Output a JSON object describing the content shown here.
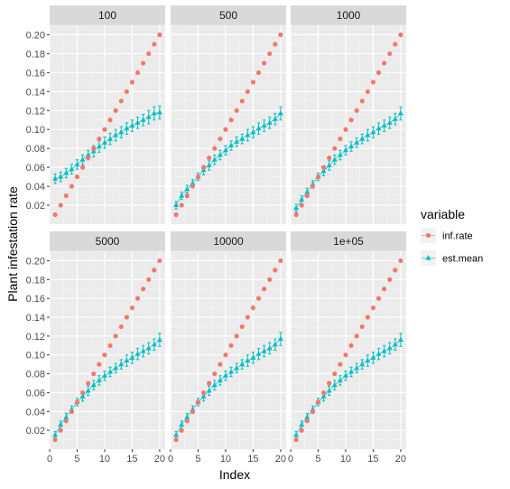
{
  "chart_data": {
    "type": "scatter",
    "facet_labels": [
      "100",
      "500",
      "1000",
      "5000",
      "10000",
      "1e+05"
    ],
    "xlabel": "Index",
    "ylabel": "Plant infestation rate",
    "x_ticks": [
      "0",
      "5",
      "10",
      "15",
      "20"
    ],
    "y_ticks": [
      "0.02",
      "0.04",
      "0.06",
      "0.08",
      "0.10",
      "0.12",
      "0.14",
      "0.16",
      "0.18",
      "0.20"
    ],
    "xlim": [
      0,
      21
    ],
    "ylim": [
      0,
      0.21
    ],
    "x": [
      1,
      2,
      3,
      4,
      5,
      6,
      7,
      8,
      9,
      10,
      11,
      12,
      13,
      14,
      15,
      16,
      17,
      18,
      19,
      20
    ],
    "grid": true,
    "legend": {
      "title": "variable",
      "position": "right",
      "entries": [
        {
          "name": "inf.rate",
          "color": "#F8766D",
          "shape": "circle"
        },
        {
          "name": "est.mean",
          "color": "#00BFC4",
          "shape": "triangle"
        }
      ]
    },
    "facets": [
      {
        "label": "100",
        "inf_rate": [
          0.01,
          0.02,
          0.03,
          0.04,
          0.05,
          0.06,
          0.07,
          0.08,
          0.09,
          0.1,
          0.11,
          0.12,
          0.13,
          0.14,
          0.15,
          0.16,
          0.17,
          0.18,
          0.19,
          0.2
        ],
        "est_mean": [
          0.048,
          0.05,
          0.054,
          0.058,
          0.063,
          0.068,
          0.073,
          0.077,
          0.082,
          0.086,
          0.09,
          0.094,
          0.097,
          0.101,
          0.104,
          0.107,
          0.11,
          0.113,
          0.117,
          0.118
        ],
        "est_err": [
          0.005,
          0.005,
          0.005,
          0.005,
          0.005,
          0.005,
          0.005,
          0.006,
          0.006,
          0.006,
          0.006,
          0.006,
          0.006,
          0.006,
          0.006,
          0.006,
          0.006,
          0.007,
          0.007,
          0.007
        ]
      },
      {
        "label": "500",
        "inf_rate": [
          0.01,
          0.02,
          0.03,
          0.04,
          0.05,
          0.06,
          0.07,
          0.08,
          0.09,
          0.1,
          0.11,
          0.12,
          0.13,
          0.14,
          0.15,
          0.16,
          0.17,
          0.18,
          0.19,
          0.2
        ],
        "est_mean": [
          0.02,
          0.03,
          0.037,
          0.043,
          0.05,
          0.057,
          0.062,
          0.068,
          0.073,
          0.078,
          0.083,
          0.087,
          0.09,
          0.094,
          0.097,
          0.101,
          0.104,
          0.107,
          0.111,
          0.117
        ],
        "est_err": [
          0.004,
          0.004,
          0.004,
          0.004,
          0.004,
          0.005,
          0.005,
          0.005,
          0.005,
          0.005,
          0.005,
          0.005,
          0.005,
          0.006,
          0.006,
          0.006,
          0.006,
          0.006,
          0.006,
          0.007
        ]
      },
      {
        "label": "1000",
        "inf_rate": [
          0.01,
          0.02,
          0.03,
          0.04,
          0.05,
          0.06,
          0.07,
          0.08,
          0.09,
          0.1,
          0.11,
          0.12,
          0.13,
          0.14,
          0.15,
          0.16,
          0.17,
          0.18,
          0.19,
          0.2
        ],
        "est_mean": [
          0.017,
          0.026,
          0.034,
          0.042,
          0.05,
          0.056,
          0.062,
          0.068,
          0.073,
          0.078,
          0.082,
          0.086,
          0.09,
          0.094,
          0.097,
          0.101,
          0.104,
          0.107,
          0.111,
          0.117
        ],
        "est_err": [
          0.004,
          0.004,
          0.004,
          0.004,
          0.004,
          0.005,
          0.005,
          0.005,
          0.005,
          0.005,
          0.005,
          0.005,
          0.005,
          0.006,
          0.006,
          0.006,
          0.006,
          0.006,
          0.006,
          0.007
        ]
      },
      {
        "label": "5000",
        "inf_rate": [
          0.01,
          0.02,
          0.03,
          0.04,
          0.05,
          0.06,
          0.07,
          0.08,
          0.09,
          0.1,
          0.11,
          0.12,
          0.13,
          0.14,
          0.15,
          0.16,
          0.17,
          0.18,
          0.19,
          0.2
        ],
        "est_mean": [
          0.015,
          0.026,
          0.034,
          0.042,
          0.05,
          0.056,
          0.062,
          0.068,
          0.073,
          0.078,
          0.082,
          0.086,
          0.09,
          0.094,
          0.097,
          0.101,
          0.104,
          0.107,
          0.111,
          0.116
        ],
        "est_err": [
          0.004,
          0.004,
          0.004,
          0.004,
          0.004,
          0.005,
          0.005,
          0.005,
          0.005,
          0.005,
          0.005,
          0.005,
          0.005,
          0.006,
          0.006,
          0.006,
          0.006,
          0.006,
          0.006,
          0.007
        ]
      },
      {
        "label": "10000",
        "inf_rate": [
          0.01,
          0.02,
          0.03,
          0.04,
          0.05,
          0.06,
          0.07,
          0.08,
          0.09,
          0.1,
          0.11,
          0.12,
          0.13,
          0.14,
          0.15,
          0.16,
          0.17,
          0.18,
          0.19,
          0.2
        ],
        "est_mean": [
          0.015,
          0.026,
          0.034,
          0.042,
          0.05,
          0.056,
          0.062,
          0.068,
          0.073,
          0.078,
          0.082,
          0.086,
          0.09,
          0.094,
          0.097,
          0.101,
          0.104,
          0.107,
          0.111,
          0.117
        ],
        "est_err": [
          0.004,
          0.004,
          0.004,
          0.004,
          0.004,
          0.005,
          0.005,
          0.005,
          0.005,
          0.005,
          0.005,
          0.005,
          0.005,
          0.006,
          0.006,
          0.006,
          0.006,
          0.006,
          0.006,
          0.007
        ]
      },
      {
        "label": "1e+05",
        "inf_rate": [
          0.01,
          0.02,
          0.03,
          0.04,
          0.05,
          0.06,
          0.07,
          0.08,
          0.09,
          0.1,
          0.11,
          0.12,
          0.13,
          0.14,
          0.15,
          0.16,
          0.17,
          0.18,
          0.19,
          0.2
        ],
        "est_mean": [
          0.015,
          0.026,
          0.034,
          0.042,
          0.05,
          0.056,
          0.062,
          0.068,
          0.073,
          0.078,
          0.082,
          0.086,
          0.09,
          0.094,
          0.097,
          0.101,
          0.104,
          0.107,
          0.111,
          0.116
        ],
        "est_err": [
          0.004,
          0.004,
          0.004,
          0.004,
          0.004,
          0.005,
          0.005,
          0.005,
          0.005,
          0.005,
          0.005,
          0.005,
          0.005,
          0.006,
          0.006,
          0.006,
          0.006,
          0.006,
          0.006,
          0.007
        ]
      }
    ]
  },
  "colors": {
    "panel_bg": "#EBEBEB",
    "strip_bg": "#D9D9D9",
    "grid_major": "#FFFFFF",
    "inf_rate": "#F8766D",
    "est_mean": "#00BFC4"
  }
}
